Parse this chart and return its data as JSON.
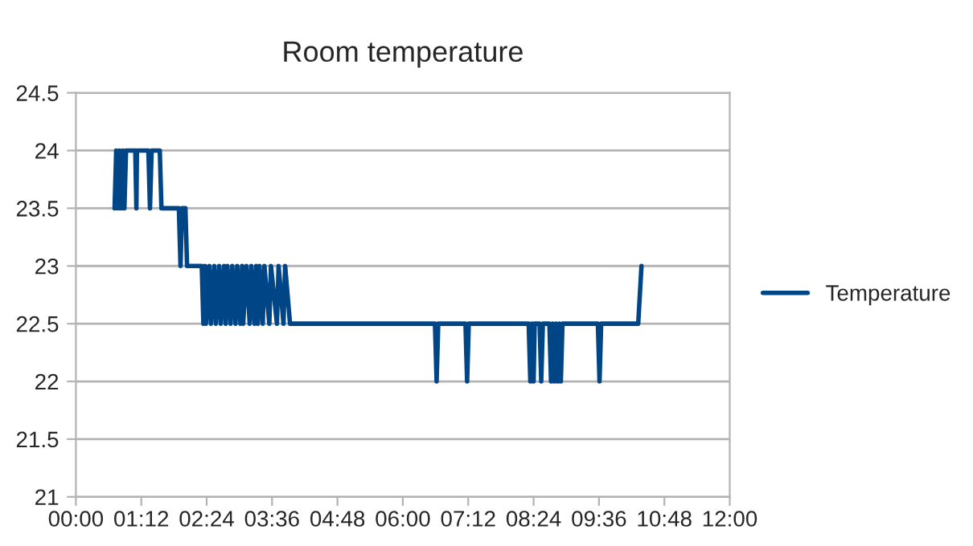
{
  "chart_data": {
    "type": "line",
    "title": "Room temperature",
    "xlim": [
      0,
      12
    ],
    "xticks": [
      {
        "value": 0,
        "label": "00:00"
      },
      {
        "value": 1.2,
        "label": "01:12"
      },
      {
        "value": 2.4,
        "label": "02:24"
      },
      {
        "value": 3.6,
        "label": "03:36"
      },
      {
        "value": 4.8,
        "label": "04:48"
      },
      {
        "value": 6,
        "label": "06:00"
      },
      {
        "value": 7.2,
        "label": "07:12"
      },
      {
        "value": 8.4,
        "label": "08:24"
      },
      {
        "value": 9.6,
        "label": "09:36"
      },
      {
        "value": 10.8,
        "label": "10:48"
      },
      {
        "value": 12,
        "label": "12:00"
      }
    ],
    "ylim": [
      21,
      24.5
    ],
    "yticks": [
      21,
      21.5,
      22,
      22.5,
      23,
      23.5,
      24,
      24.5
    ],
    "grid": "y",
    "legend": "right",
    "marker": "none",
    "line_style": "solid",
    "series": [
      {
        "name": "Temperature",
        "color": "#004586",
        "x": [
          0.71,
          0.74,
          0.77,
          0.8,
          0.83,
          0.86,
          0.89,
          0.92,
          1.09,
          1.11,
          1.12,
          1.33,
          1.36,
          1.39,
          1.54,
          1.57,
          1.89,
          1.92,
          1.95,
          2.01,
          2.04,
          2.31,
          2.34,
          2.37,
          2.39,
          2.45,
          2.48,
          2.54,
          2.57,
          2.63,
          2.66,
          2.72,
          2.75,
          2.78,
          2.84,
          2.87,
          2.93,
          2.96,
          3.02,
          3.05,
          3.07,
          3.13,
          3.19,
          3.22,
          3.28,
          3.31,
          3.34,
          3.37,
          3.43,
          3.46,
          3.55,
          3.58,
          3.69,
          3.72,
          3.81,
          3.84,
          3.93,
          3.96,
          6.59,
          6.62,
          6.65,
          7.15,
          7.18,
          7.21,
          8.31,
          8.34,
          8.37,
          8.4,
          8.42,
          8.51,
          8.54,
          8.57,
          8.69,
          8.72,
          8.75,
          8.78,
          8.81,
          8.84,
          8.87,
          8.9,
          8.93,
          9.58,
          9.61,
          9.64,
          10.32,
          10.38
        ],
        "values": [
          23.5,
          24,
          23.5,
          24,
          23.5,
          24,
          23.5,
          24,
          24,
          23.5,
          24,
          24,
          23.5,
          24,
          24,
          23.5,
          23.5,
          23,
          23.5,
          23.5,
          23,
          23,
          22.5,
          23,
          22.5,
          23,
          22.5,
          23,
          22.5,
          23,
          22.5,
          23,
          22.5,
          23,
          22.5,
          23,
          22.5,
          23,
          22.5,
          23,
          22.5,
          23,
          22.5,
          23,
          22.5,
          23,
          22.5,
          23,
          22.5,
          23,
          22.5,
          23,
          22.5,
          23,
          22.5,
          23,
          22.5,
          22.5,
          22.5,
          22,
          22.5,
          22.5,
          22,
          22.5,
          22.5,
          22,
          22.5,
          22,
          22.5,
          22.5,
          22,
          22.5,
          22.5,
          22,
          22.5,
          22,
          22.5,
          22,
          22.5,
          22,
          22.5,
          22.5,
          22,
          22.5,
          22.5,
          23
        ]
      }
    ]
  }
}
